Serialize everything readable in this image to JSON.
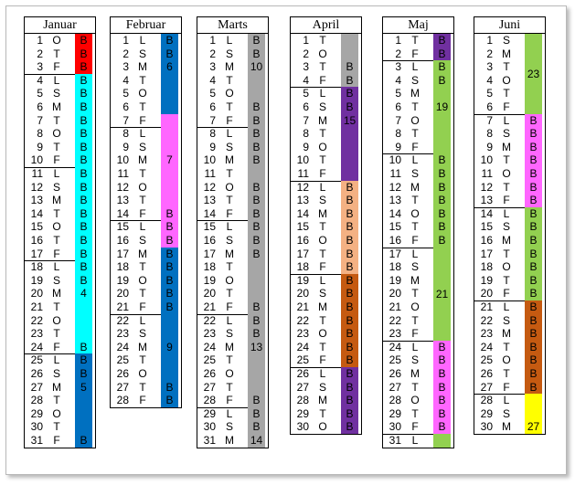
{
  "colors": {
    "red": "#ff0000",
    "cyan": "#00ffff",
    "blue": "#0070c0",
    "magenta": "#ff66ff",
    "gray": "#a6a6a6",
    "purple": "#7030a0",
    "peach": "#f4b183",
    "orange": "#c55a11",
    "green": "#92d050",
    "yellow": "#ffff00"
  },
  "months": [
    {
      "name": "Januar",
      "days": [
        {
          "n": "1",
          "w": "O",
          "b": "B"
        },
        {
          "n": "2",
          "w": "T",
          "b": "B"
        },
        {
          "n": "3",
          "w": "F",
          "b": "B"
        },
        {
          "n": "4",
          "w": "L",
          "b": "B"
        },
        {
          "n": "5",
          "w": "S",
          "b": "B"
        },
        {
          "n": "6",
          "w": "M",
          "b": "B"
        },
        {
          "n": "7",
          "w": "T",
          "b": "B"
        },
        {
          "n": "8",
          "w": "O",
          "b": "B"
        },
        {
          "n": "9",
          "w": "T",
          "b": "B"
        },
        {
          "n": "10",
          "w": "F",
          "b": "B"
        },
        {
          "n": "11",
          "w": "L",
          "b": "B"
        },
        {
          "n": "12",
          "w": "S",
          "b": "B"
        },
        {
          "n": "13",
          "w": "M",
          "b": "B"
        },
        {
          "n": "14",
          "w": "T",
          "b": "B"
        },
        {
          "n": "15",
          "w": "O",
          "b": "B"
        },
        {
          "n": "16",
          "w": "T",
          "b": "B"
        },
        {
          "n": "17",
          "w": "F",
          "b": "B"
        },
        {
          "n": "18",
          "w": "L",
          "b": "B"
        },
        {
          "n": "19",
          "w": "S",
          "b": "B"
        },
        {
          "n": "20",
          "w": "M",
          "b": "4"
        },
        {
          "n": "21",
          "w": "T",
          "b": ""
        },
        {
          "n": "22",
          "w": "O",
          "b": ""
        },
        {
          "n": "23",
          "w": "T",
          "b": ""
        },
        {
          "n": "24",
          "w": "F",
          "b": "B"
        },
        {
          "n": "25",
          "w": "L",
          "b": "B"
        },
        {
          "n": "26",
          "w": "S",
          "b": "B"
        },
        {
          "n": "27",
          "w": "M",
          "b": "5"
        },
        {
          "n": "28",
          "w": "T",
          "b": ""
        },
        {
          "n": "29",
          "w": "O",
          "b": ""
        },
        {
          "n": "30",
          "w": "T",
          "b": ""
        },
        {
          "n": "31",
          "w": "F",
          "b": "B"
        }
      ],
      "seps": [
        3,
        10,
        17,
        24
      ],
      "bands": [
        {
          "from": 1,
          "to": 3,
          "color": "red"
        },
        {
          "from": 4,
          "to": 24,
          "color": "cyan"
        },
        {
          "from": 25,
          "to": 31,
          "color": "blue"
        }
      ],
      "weeks": []
    },
    {
      "name": "Februar",
      "days": [
        {
          "n": "1",
          "w": "L",
          "b": "B"
        },
        {
          "n": "2",
          "w": "S",
          "b": "B"
        },
        {
          "n": "3",
          "w": "M",
          "b": "6"
        },
        {
          "n": "4",
          "w": "T",
          "b": ""
        },
        {
          "n": "5",
          "w": "O",
          "b": ""
        },
        {
          "n": "6",
          "w": "T",
          "b": ""
        },
        {
          "n": "7",
          "w": "F",
          "b": ""
        },
        {
          "n": "8",
          "w": "L",
          "b": ""
        },
        {
          "n": "9",
          "w": "S",
          "b": ""
        },
        {
          "n": "10",
          "w": "M",
          "b": "7"
        },
        {
          "n": "11",
          "w": "T",
          "b": ""
        },
        {
          "n": "12",
          "w": "O",
          "b": ""
        },
        {
          "n": "13",
          "w": "T",
          "b": ""
        },
        {
          "n": "14",
          "w": "F",
          "b": "B"
        },
        {
          "n": "15",
          "w": "L",
          "b": "B"
        },
        {
          "n": "16",
          "w": "S",
          "b": "B"
        },
        {
          "n": "17",
          "w": "M",
          "b": "B"
        },
        {
          "n": "18",
          "w": "T",
          "b": "B"
        },
        {
          "n": "19",
          "w": "O",
          "b": "B"
        },
        {
          "n": "20",
          "w": "T",
          "b": "B"
        },
        {
          "n": "21",
          "w": "F",
          "b": "B"
        },
        {
          "n": "22",
          "w": "L",
          "b": ""
        },
        {
          "n": "23",
          "w": "S",
          "b": ""
        },
        {
          "n": "24",
          "w": "M",
          "b": "9"
        },
        {
          "n": "25",
          "w": "T",
          "b": ""
        },
        {
          "n": "26",
          "w": "O",
          "b": ""
        },
        {
          "n": "27",
          "w": "T",
          "b": "B"
        },
        {
          "n": "28",
          "w": "F",
          "b": "B"
        }
      ],
      "seps": [
        7,
        14,
        21
      ],
      "bands": [
        {
          "from": 1,
          "to": 6,
          "color": "blue"
        },
        {
          "from": 7,
          "to": 16,
          "color": "magenta"
        },
        {
          "from": 17,
          "to": 28,
          "color": "blue"
        }
      ],
      "weeks": []
    },
    {
      "name": "Marts",
      "days": [
        {
          "n": "1",
          "w": "L",
          "b": "B"
        },
        {
          "n": "2",
          "w": "S",
          "b": "B"
        },
        {
          "n": "3",
          "w": "M",
          "b": "10"
        },
        {
          "n": "4",
          "w": "T",
          "b": ""
        },
        {
          "n": "5",
          "w": "O",
          "b": ""
        },
        {
          "n": "6",
          "w": "T",
          "b": "B"
        },
        {
          "n": "7",
          "w": "F",
          "b": "B"
        },
        {
          "n": "8",
          "w": "L",
          "b": "B"
        },
        {
          "n": "9",
          "w": "S",
          "b": "B"
        },
        {
          "n": "10",
          "w": "M",
          "b": "B"
        },
        {
          "n": "11",
          "w": "T",
          "b": ""
        },
        {
          "n": "12",
          "w": "O",
          "b": "B"
        },
        {
          "n": "13",
          "w": "T",
          "b": "B"
        },
        {
          "n": "14",
          "w": "F",
          "b": "B"
        },
        {
          "n": "15",
          "w": "L",
          "b": "B"
        },
        {
          "n": "16",
          "w": "S",
          "b": "B"
        },
        {
          "n": "17",
          "w": "M",
          "b": "B"
        },
        {
          "n": "18",
          "w": "T",
          "b": ""
        },
        {
          "n": "19",
          "w": "O",
          "b": ""
        },
        {
          "n": "20",
          "w": "T",
          "b": ""
        },
        {
          "n": "21",
          "w": "F",
          "b": "B"
        },
        {
          "n": "22",
          "w": "L",
          "b": "B"
        },
        {
          "n": "23",
          "w": "S",
          "b": "B"
        },
        {
          "n": "24",
          "w": "M",
          "b": "13"
        },
        {
          "n": "25",
          "w": "T",
          "b": ""
        },
        {
          "n": "26",
          "w": "O",
          "b": ""
        },
        {
          "n": "27",
          "w": "T",
          "b": ""
        },
        {
          "n": "28",
          "w": "F",
          "b": "B"
        },
        {
          "n": "29",
          "w": "L",
          "b": "B"
        },
        {
          "n": "30",
          "w": "S",
          "b": "B"
        },
        {
          "n": "31",
          "w": "M",
          "b": "14"
        }
      ],
      "seps": [
        7,
        14,
        21,
        28
      ],
      "bands": [
        {
          "from": 1,
          "to": 31,
          "color": "gray"
        }
      ],
      "weeks": []
    },
    {
      "name": "April",
      "days": [
        {
          "n": "1",
          "w": "T",
          "b": ""
        },
        {
          "n": "2",
          "w": "O",
          "b": ""
        },
        {
          "n": "3",
          "w": "T",
          "b": "B"
        },
        {
          "n": "4",
          "w": "F",
          "b": "B"
        },
        {
          "n": "5",
          "w": "L",
          "b": "B"
        },
        {
          "n": "6",
          "w": "S",
          "b": "B"
        },
        {
          "n": "7",
          "w": "M",
          "b": "15"
        },
        {
          "n": "8",
          "w": "T",
          "b": ""
        },
        {
          "n": "9",
          "w": "O",
          "b": ""
        },
        {
          "n": "10",
          "w": "T",
          "b": ""
        },
        {
          "n": "11",
          "w": "F",
          "b": ""
        },
        {
          "n": "12",
          "w": "L",
          "b": "B"
        },
        {
          "n": "13",
          "w": "S",
          "b": "B"
        },
        {
          "n": "14",
          "w": "M",
          "b": "B"
        },
        {
          "n": "15",
          "w": "T",
          "b": "B"
        },
        {
          "n": "16",
          "w": "O",
          "b": "B"
        },
        {
          "n": "17",
          "w": "T",
          "b": "B"
        },
        {
          "n": "18",
          "w": "F",
          "b": "B"
        },
        {
          "n": "19",
          "w": "L",
          "b": "B"
        },
        {
          "n": "20",
          "w": "S",
          "b": "B"
        },
        {
          "n": "21",
          "w": "M",
          "b": "B"
        },
        {
          "n": "22",
          "w": "T",
          "b": "B"
        },
        {
          "n": "23",
          "w": "O",
          "b": "B"
        },
        {
          "n": "24",
          "w": "T",
          "b": "B"
        },
        {
          "n": "25",
          "w": "F",
          "b": "B"
        },
        {
          "n": "26",
          "w": "L",
          "b": "B"
        },
        {
          "n": "27",
          "w": "S",
          "b": "B"
        },
        {
          "n": "28",
          "w": "M",
          "b": "B"
        },
        {
          "n": "29",
          "w": "T",
          "b": "B"
        },
        {
          "n": "30",
          "w": "O",
          "b": "B"
        }
      ],
      "seps": [
        4,
        11,
        18,
        25
      ],
      "bands": [
        {
          "from": 1,
          "to": 4,
          "color": "gray"
        },
        {
          "from": 5,
          "to": 11,
          "color": "purple"
        },
        {
          "from": 12,
          "to": 18,
          "color": "peach"
        },
        {
          "from": 19,
          "to": 25,
          "color": "orange"
        },
        {
          "from": 26,
          "to": 30,
          "color": "purple"
        }
      ],
      "weeks": []
    },
    {
      "name": "Maj",
      "days": [
        {
          "n": "1",
          "w": "T",
          "b": "B"
        },
        {
          "n": "2",
          "w": "F",
          "b": "B"
        },
        {
          "n": "3",
          "w": "L",
          "b": "B"
        },
        {
          "n": "4",
          "w": "S",
          "b": "B"
        },
        {
          "n": "5",
          "w": "M",
          "b": ""
        },
        {
          "n": "6",
          "w": "T",
          "b": ""
        },
        {
          "n": "7",
          "w": "O",
          "b": ""
        },
        {
          "n": "8",
          "w": "T",
          "b": ""
        },
        {
          "n": "9",
          "w": "F",
          "b": ""
        },
        {
          "n": "10",
          "w": "L",
          "b": "B"
        },
        {
          "n": "11",
          "w": "S",
          "b": "B"
        },
        {
          "n": "12",
          "w": "M",
          "b": "B"
        },
        {
          "n": "13",
          "w": "T",
          "b": "B"
        },
        {
          "n": "14",
          "w": "O",
          "b": "B"
        },
        {
          "n": "15",
          "w": "T",
          "b": "B"
        },
        {
          "n": "16",
          "w": "F",
          "b": "B"
        },
        {
          "n": "17",
          "w": "L",
          "b": ""
        },
        {
          "n": "18",
          "w": "S",
          "b": ""
        },
        {
          "n": "19",
          "w": "M",
          "b": ""
        },
        {
          "n": "20",
          "w": "T",
          "b": ""
        },
        {
          "n": "21",
          "w": "O",
          "b": ""
        },
        {
          "n": "22",
          "w": "T",
          "b": ""
        },
        {
          "n": "23",
          "w": "F",
          "b": ""
        },
        {
          "n": "24",
          "w": "L",
          "b": "B"
        },
        {
          "n": "25",
          "w": "S",
          "b": "B"
        },
        {
          "n": "26",
          "w": "M",
          "b": "B"
        },
        {
          "n": "27",
          "w": "T",
          "b": "B"
        },
        {
          "n": "28",
          "w": "O",
          "b": "B"
        },
        {
          "n": "29",
          "w": "T",
          "b": "B"
        },
        {
          "n": "30",
          "w": "F",
          "b": "B"
        },
        {
          "n": "31",
          "w": "L",
          "b": ""
        }
      ],
      "seps": [
        2,
        9,
        16,
        23,
        30
      ],
      "bands": [
        {
          "from": 1,
          "to": 2,
          "color": "purple"
        },
        {
          "from": 3,
          "to": 23,
          "color": "green"
        },
        {
          "from": 24,
          "to": 30,
          "color": "magenta"
        },
        {
          "from": 31,
          "to": 31,
          "color": "green"
        }
      ],
      "weeks": [
        {
          "from": 3,
          "to": 9,
          "label": "19"
        },
        {
          "from": 17,
          "to": 23,
          "label": "21"
        }
      ]
    },
    {
      "name": "Juni",
      "days": [
        {
          "n": "1",
          "w": "S",
          "b": ""
        },
        {
          "n": "2",
          "w": "M",
          "b": ""
        },
        {
          "n": "3",
          "w": "T",
          "b": ""
        },
        {
          "n": "4",
          "w": "O",
          "b": ""
        },
        {
          "n": "5",
          "w": "T",
          "b": ""
        },
        {
          "n": "6",
          "w": "F",
          "b": ""
        },
        {
          "n": "7",
          "w": "L",
          "b": "B"
        },
        {
          "n": "8",
          "w": "S",
          "b": "B"
        },
        {
          "n": "9",
          "w": "M",
          "b": "B"
        },
        {
          "n": "10",
          "w": "T",
          "b": "B"
        },
        {
          "n": "11",
          "w": "O",
          "b": "B"
        },
        {
          "n": "12",
          "w": "T",
          "b": "B"
        },
        {
          "n": "13",
          "w": "F",
          "b": "B"
        },
        {
          "n": "14",
          "w": "L",
          "b": "B"
        },
        {
          "n": "15",
          "w": "S",
          "b": "B"
        },
        {
          "n": "16",
          "w": "M",
          "b": "B"
        },
        {
          "n": "17",
          "w": "T",
          "b": "B"
        },
        {
          "n": "18",
          "w": "O",
          "b": "B"
        },
        {
          "n": "19",
          "w": "T",
          "b": "B"
        },
        {
          "n": "20",
          "w": "F",
          "b": "B"
        },
        {
          "n": "21",
          "w": "L",
          "b": "B"
        },
        {
          "n": "22",
          "w": "S",
          "b": "B"
        },
        {
          "n": "23",
          "w": "M",
          "b": "B"
        },
        {
          "n": "24",
          "w": "T",
          "b": "B"
        },
        {
          "n": "25",
          "w": "O",
          "b": "B"
        },
        {
          "n": "26",
          "w": "T",
          "b": "B"
        },
        {
          "n": "27",
          "w": "F",
          "b": "B"
        },
        {
          "n": "28",
          "w": "L",
          "b": ""
        },
        {
          "n": "29",
          "w": "S",
          "b": ""
        },
        {
          "n": "30",
          "w": "M",
          "b": "27"
        }
      ],
      "seps": [
        6,
        13,
        20,
        27
      ],
      "bands": [
        {
          "from": 1,
          "to": 6,
          "color": "green"
        },
        {
          "from": 7,
          "to": 13,
          "color": "magenta"
        },
        {
          "from": 14,
          "to": 20,
          "color": "green"
        },
        {
          "from": 21,
          "to": 27,
          "color": "orange"
        },
        {
          "from": 28,
          "to": 30,
          "color": "yellow"
        }
      ],
      "weeks": [
        {
          "from": 1,
          "to": 6,
          "label": "23"
        }
      ]
    }
  ]
}
